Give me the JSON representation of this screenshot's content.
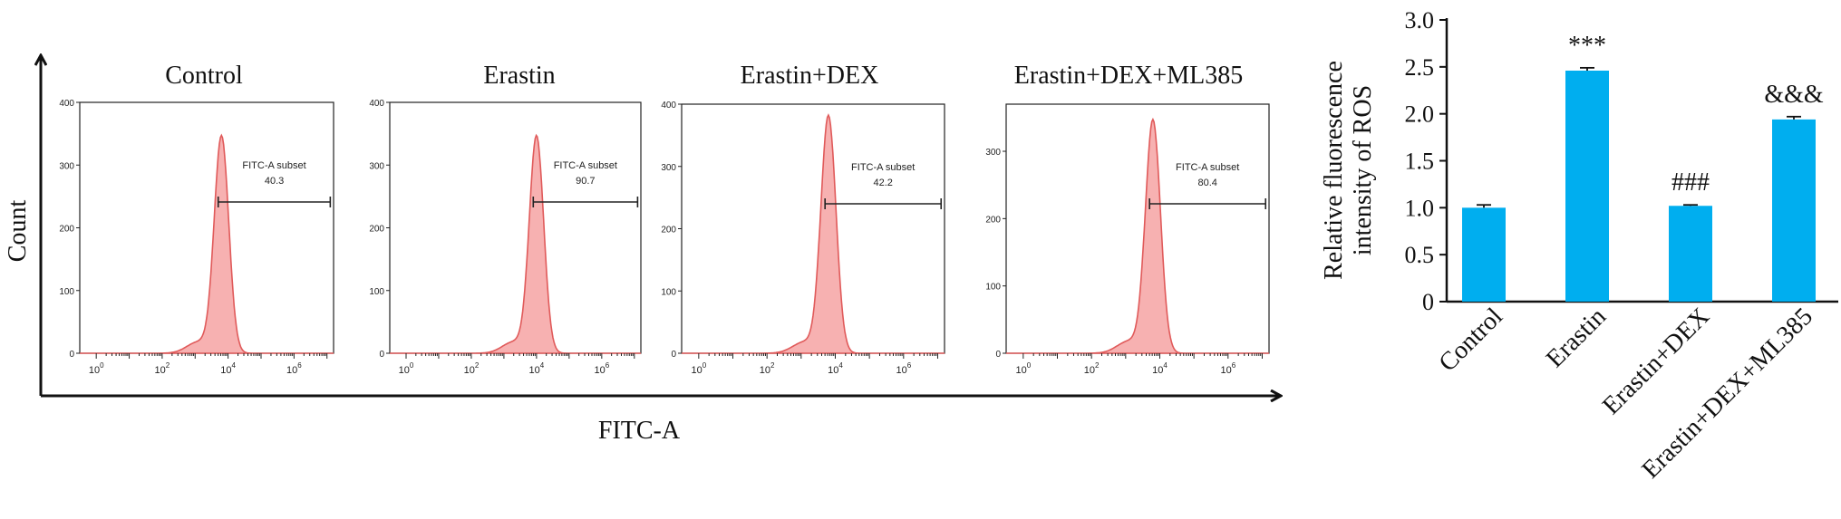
{
  "chart_data": [
    {
      "type": "histogram",
      "x_label": "FITC-A",
      "y_label": "Count",
      "x_scale": "log",
      "x_tick_labels": [
        "10^0",
        "10^2",
        "10^4",
        "10^6"
      ],
      "panels": [
        {
          "title": "Control",
          "gate_label": "FITC-A subset",
          "gate_value": "40.3",
          "y_ticks": [
            "0",
            "100",
            "200",
            "300",
            "400"
          ],
          "ymax": 400,
          "peak_log10": 3.8,
          "peak_height": 345
        },
        {
          "title": "Erastin",
          "gate_label": "FITC-A subset",
          "gate_value": "90.7",
          "y_ticks": [
            "0",
            "100",
            "200",
            "300",
            "400"
          ],
          "ymax": 400,
          "peak_log10": 4.0,
          "peak_height": 345
        },
        {
          "title": "Erastin+DEX",
          "gate_label": "FITC-A subset",
          "gate_value": "42.2",
          "y_ticks": [
            "0",
            "100",
            "200",
            "300",
            "400"
          ],
          "ymax": 400,
          "peak_log10": 3.8,
          "peak_height": 380
        },
        {
          "title": "Erastin+DEX+ML385",
          "gate_label": "FITC-A subset",
          "gate_value": "80.4",
          "y_ticks": [
            "0",
            "100",
            "200",
            "300"
          ],
          "ymax": 370,
          "peak_log10": 3.8,
          "peak_height": 345
        }
      ]
    },
    {
      "type": "bar",
      "categories": [
        "Control",
        "Erastin",
        "Erastin+DEX",
        "Erastin+DEX+ML385"
      ],
      "values": [
        1.0,
        2.46,
        1.02,
        1.94
      ],
      "errors": [
        0.03,
        0.03,
        0.01,
        0.03
      ],
      "annotations": [
        "",
        "***",
        "###",
        "&&&"
      ],
      "ylabel_line1": "Relative fluorescence",
      "ylabel_line2": "intensity of ROS",
      "ylim": [
        0,
        3.0
      ],
      "y_ticks": [
        "0",
        "0.5",
        "1.0",
        "1.5",
        "2.0",
        "2.5",
        "3.0"
      ],
      "bar_color": "#00AEEF",
      "grid": false
    }
  ],
  "colors": {
    "histogram_fill": "#F6A3A3",
    "histogram_stroke": "#E05A5A",
    "bar": "#00AEEF"
  }
}
